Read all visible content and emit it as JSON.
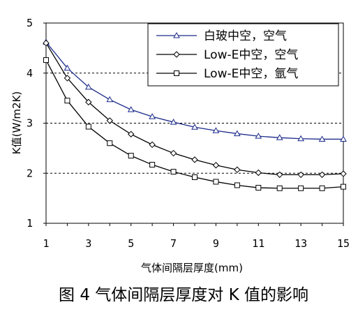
{
  "chart_data": {
    "type": "line",
    "title": "",
    "caption": "图 4 气体间隔层厚度对 K 值的影响",
    "xlabel": "气体间隔层厚度(mm)",
    "ylabel": "K值(W/m2K)",
    "xlim": [
      1,
      15
    ],
    "ylim": [
      1,
      5
    ],
    "xticks": [
      "1",
      "3",
      "5",
      "7",
      "9",
      "11",
      "13",
      "15"
    ],
    "yticks": [
      "1",
      "2",
      "3",
      "4",
      "5"
    ],
    "grid": "horizontal dashed at 2, 3, 4",
    "legend_position": "top-right",
    "x": [
      1,
      2,
      3,
      4,
      5,
      6,
      7,
      8,
      9,
      10,
      11,
      12,
      13,
      14,
      15
    ],
    "series": [
      {
        "name": "白玻中空，空气",
        "marker": "triangle",
        "color": "#1a2a8a",
        "values": [
          4.62,
          4.1,
          3.72,
          3.47,
          3.27,
          3.13,
          3.02,
          2.92,
          2.85,
          2.79,
          2.74,
          2.71,
          2.69,
          2.68,
          2.68
        ]
      },
      {
        "name": "Low-E中空，空气",
        "marker": "diamond",
        "color": "#000000",
        "values": [
          4.6,
          3.9,
          3.42,
          3.05,
          2.78,
          2.57,
          2.4,
          2.27,
          2.16,
          2.07,
          2.01,
          1.97,
          1.97,
          1.97,
          1.99
        ]
      },
      {
        "name": "Low-E中空，氩气",
        "marker": "square",
        "color": "#000000",
        "values": [
          4.26,
          3.45,
          2.93,
          2.6,
          2.35,
          2.17,
          2.03,
          1.92,
          1.83,
          1.76,
          1.71,
          1.7,
          1.7,
          1.7,
          1.73
        ]
      }
    ]
  }
}
